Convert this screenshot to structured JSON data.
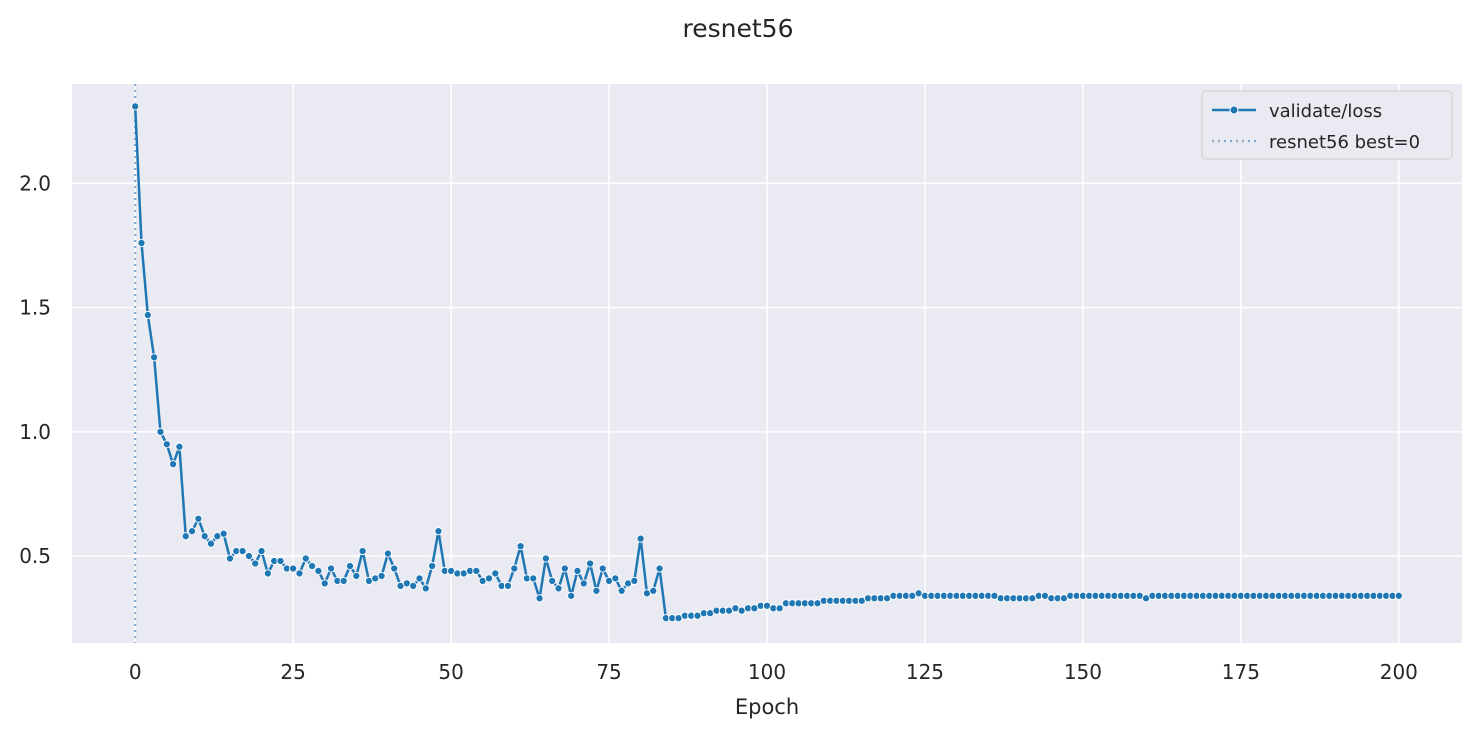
{
  "chart_data": {
    "type": "line",
    "title": "resnet56",
    "xlabel": "Epoch",
    "ylabel": "",
    "xlim": [
      -10,
      210
    ],
    "ylim": [
      0.15,
      2.4
    ],
    "xticks": [
      0,
      25,
      50,
      75,
      100,
      125,
      150,
      175,
      200
    ],
    "yticks": [
      0.5,
      1.0,
      1.5,
      2.0
    ],
    "xtick_labels": [
      "0",
      "25",
      "50",
      "75",
      "100",
      "125",
      "150",
      "175",
      "200"
    ],
    "ytick_labels": [
      "0.5",
      "1.0",
      "1.5",
      "2.0"
    ],
    "grid": true,
    "legend_position": "top-right",
    "colors": {
      "series": "#1f77b4",
      "best_line": "#7fa9d3",
      "background": "#eaeaf2",
      "grid": "#ffffff"
    },
    "series": [
      {
        "name": "validate/loss",
        "marker": "circle",
        "x_start": 0,
        "x_step": 1,
        "values": [
          2.31,
          1.76,
          1.47,
          1.3,
          1.0,
          0.95,
          0.87,
          0.94,
          0.58,
          0.6,
          0.65,
          0.58,
          0.55,
          0.58,
          0.59,
          0.49,
          0.52,
          0.52,
          0.5,
          0.47,
          0.52,
          0.43,
          0.48,
          0.48,
          0.45,
          0.45,
          0.43,
          0.49,
          0.46,
          0.44,
          0.39,
          0.45,
          0.4,
          0.4,
          0.46,
          0.42,
          0.52,
          0.4,
          0.41,
          0.42,
          0.51,
          0.45,
          0.38,
          0.39,
          0.38,
          0.41,
          0.37,
          0.46,
          0.6,
          0.44,
          0.44,
          0.43,
          0.43,
          0.44,
          0.44,
          0.4,
          0.41,
          0.43,
          0.38,
          0.38,
          0.45,
          0.54,
          0.41,
          0.41,
          0.33,
          0.49,
          0.4,
          0.37,
          0.45,
          0.34,
          0.44,
          0.39,
          0.47,
          0.36,
          0.45,
          0.4,
          0.41,
          0.36,
          0.39,
          0.4,
          0.57,
          0.35,
          0.36,
          0.45,
          0.25,
          0.25,
          0.25,
          0.26,
          0.26,
          0.26,
          0.27,
          0.27,
          0.28,
          0.28,
          0.28,
          0.29,
          0.28,
          0.29,
          0.29,
          0.3,
          0.3,
          0.29,
          0.29,
          0.31,
          0.31,
          0.31,
          0.31,
          0.31,
          0.31,
          0.32,
          0.32,
          0.32,
          0.32,
          0.32,
          0.32,
          0.32,
          0.33,
          0.33,
          0.33,
          0.33,
          0.34,
          0.34,
          0.34,
          0.34,
          0.35,
          0.34,
          0.34,
          0.34,
          0.34,
          0.34,
          0.34,
          0.34,
          0.34,
          0.34,
          0.34,
          0.34,
          0.34,
          0.33,
          0.33,
          0.33,
          0.33,
          0.33,
          0.33,
          0.34,
          0.34,
          0.33,
          0.33,
          0.33,
          0.34,
          0.34,
          0.34,
          0.34,
          0.34,
          0.34,
          0.34,
          0.34,
          0.34,
          0.34,
          0.34,
          0.34,
          0.33,
          0.34,
          0.34,
          0.34,
          0.34,
          0.34,
          0.34,
          0.34,
          0.34,
          0.34,
          0.34,
          0.34,
          0.34,
          0.34,
          0.34,
          0.34,
          0.34,
          0.34,
          0.34,
          0.34,
          0.34,
          0.34,
          0.34,
          0.34,
          0.34,
          0.34,
          0.34,
          0.34,
          0.34,
          0.34,
          0.34,
          0.34,
          0.34,
          0.34,
          0.34,
          0.34,
          0.34,
          0.34,
          0.34,
          0.34,
          0.34
        ]
      },
      {
        "name": "resnet56 best=0",
        "style": "vertical-dotted",
        "x": 0
      }
    ]
  }
}
